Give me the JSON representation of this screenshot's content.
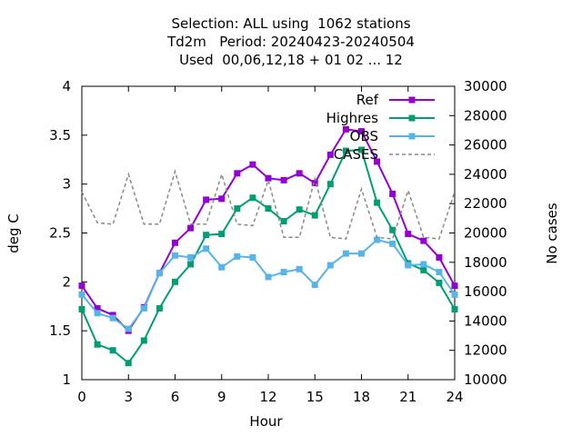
{
  "chart_data": {
    "type": "line",
    "title_lines": [
      "Selection: ALL using  1062 stations",
      "Td2m   Period: 20240423-20240504",
      "Used  00,06,12,18 + 01 02 ... 12"
    ],
    "xlabel": "Hour",
    "ylabel": "deg C",
    "y2label": "No cases",
    "xlim": [
      0,
      24
    ],
    "ylim": [
      1,
      4
    ],
    "y2lim": [
      10000,
      30000
    ],
    "xticks": [
      "0",
      "3",
      "6",
      "9",
      "12",
      "15",
      "18",
      "21",
      "24"
    ],
    "yticks": [
      "1",
      "1.5",
      "2",
      "2.5",
      "3",
      "3.5",
      "4"
    ],
    "y2ticks": [
      "10000",
      "12000",
      "14000",
      "16000",
      "18000",
      "20000",
      "22000",
      "24000",
      "26000",
      "28000",
      "30000"
    ],
    "legend_position": "top-right",
    "x": [
      0,
      1,
      2,
      3,
      4,
      5,
      6,
      7,
      8,
      9,
      10,
      11,
      12,
      13,
      14,
      15,
      16,
      17,
      18,
      19,
      20,
      21,
      22,
      23,
      24
    ],
    "series": [
      {
        "name": "Ref",
        "axis": "y1",
        "color": "#9400d3",
        "marker": "square",
        "values": [
          1.96,
          1.73,
          1.66,
          1.5,
          1.74,
          2.09,
          2.4,
          2.55,
          2.84,
          2.85,
          3.11,
          3.2,
          3.06,
          3.04,
          3.11,
          3.01,
          3.3,
          3.56,
          3.54,
          3.23,
          2.9,
          2.49,
          2.42,
          2.25,
          1.96
        ]
      },
      {
        "name": "Highres",
        "axis": "y1",
        "color": "#009e73",
        "marker": "square",
        "values": [
          1.72,
          1.36,
          1.3,
          1.17,
          1.4,
          1.73,
          2.0,
          2.18,
          2.48,
          2.49,
          2.75,
          2.86,
          2.75,
          2.62,
          2.74,
          2.68,
          3.0,
          3.34,
          3.35,
          2.81,
          2.53,
          2.19,
          2.12,
          1.99,
          1.72
        ]
      },
      {
        "name": "OBS",
        "axis": "y1",
        "color": "#56b4e9",
        "marker": "square",
        "values": [
          1.87,
          1.68,
          1.63,
          1.52,
          1.73,
          2.09,
          2.27,
          2.25,
          2.34,
          2.15,
          2.26,
          2.25,
          2.05,
          2.1,
          2.13,
          1.97,
          2.17,
          2.29,
          2.29,
          2.43,
          2.39,
          2.17,
          2.18,
          2.1,
          1.87
        ]
      },
      {
        "name": "CASES",
        "axis": "y2",
        "color": "#888888",
        "dash": true,
        "values": [
          22800,
          20700,
          20600,
          24000,
          20600,
          20600,
          24200,
          20600,
          20600,
          24000,
          20600,
          20500,
          23600,
          19700,
          19700,
          23700,
          19700,
          19600,
          23000,
          19700,
          19600,
          22900,
          19700,
          19600,
          22800
        ]
      }
    ]
  }
}
